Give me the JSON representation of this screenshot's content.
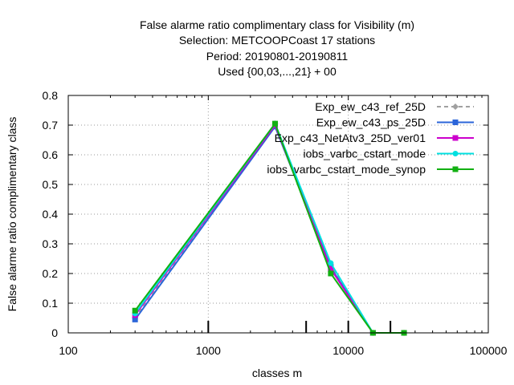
{
  "title_lines": [
    "False alarme ratio complimentary class  for Visibility (m)",
    "Selection: METCOOPCoast     17 stations",
    "Period: 20190801-20190811",
    "Used {00,03,...,21} + 00"
  ],
  "chart_data": {
    "type": "line",
    "xlabel": "classes m",
    "ylabel": "False alarme ratio complimentary class",
    "x_scale": "log",
    "xlim": [
      100,
      100000
    ],
    "ylim": [
      0,
      0.8
    ],
    "x_ticks": [
      100,
      1000,
      10000,
      100000
    ],
    "x_tick_labels": [
      "100",
      "1000",
      "10000",
      "100000"
    ],
    "y_ticks": [
      0,
      0.1,
      0.2,
      0.3,
      0.4,
      0.5,
      0.6,
      0.7,
      0.8
    ],
    "y_tick_labels": [
      "0",
      "0.1",
      "0.2",
      "0.3",
      "0.4",
      "0.5",
      "0.6",
      "0.7",
      "0.8"
    ],
    "grid": true,
    "legend_position": "top-right",
    "class_markers_x": [
      1000,
      5000,
      10000,
      20000
    ],
    "series": [
      {
        "name": "Exp_ew_c43_ref_25D",
        "color": "#a0a0a0",
        "dashed": true,
        "marker": "diamond",
        "x": [
          300,
          3000,
          7500,
          15000,
          25000
        ],
        "y": [
          0.05,
          0.705,
          0.23,
          0.0,
          0.0
        ]
      },
      {
        "name": "Exp_ew_c43_ps_25D",
        "color": "#2b65d9",
        "dashed": false,
        "marker": "square",
        "x": [
          300,
          3000,
          7500,
          15000,
          25000
        ],
        "y": [
          0.045,
          0.695,
          0.22,
          0.0,
          0.0
        ]
      },
      {
        "name": "Exp_c43_NetAtv3_25D_ver01",
        "color": "#cc00cc",
        "dashed": false,
        "marker": "square",
        "x": [
          300,
          3000,
          7500,
          15000,
          25000
        ],
        "y": [
          0.06,
          0.7,
          0.215,
          0.0,
          0.0
        ]
      },
      {
        "name": "iobs_varbc_cstart_mode",
        "color": "#00e0e0",
        "dashed": false,
        "marker": "circle",
        "x": [
          300,
          3000,
          7500,
          15000,
          25000
        ],
        "y": [
          0.065,
          0.705,
          0.235,
          0.0,
          0.0
        ]
      },
      {
        "name": "iobs_varbc_cstart_mode_synop",
        "color": "#12b012",
        "dashed": false,
        "marker": "square",
        "x": [
          300,
          3000,
          7500,
          15000,
          25000
        ],
        "y": [
          0.075,
          0.705,
          0.2,
          0.0,
          0.0
        ]
      }
    ]
  }
}
